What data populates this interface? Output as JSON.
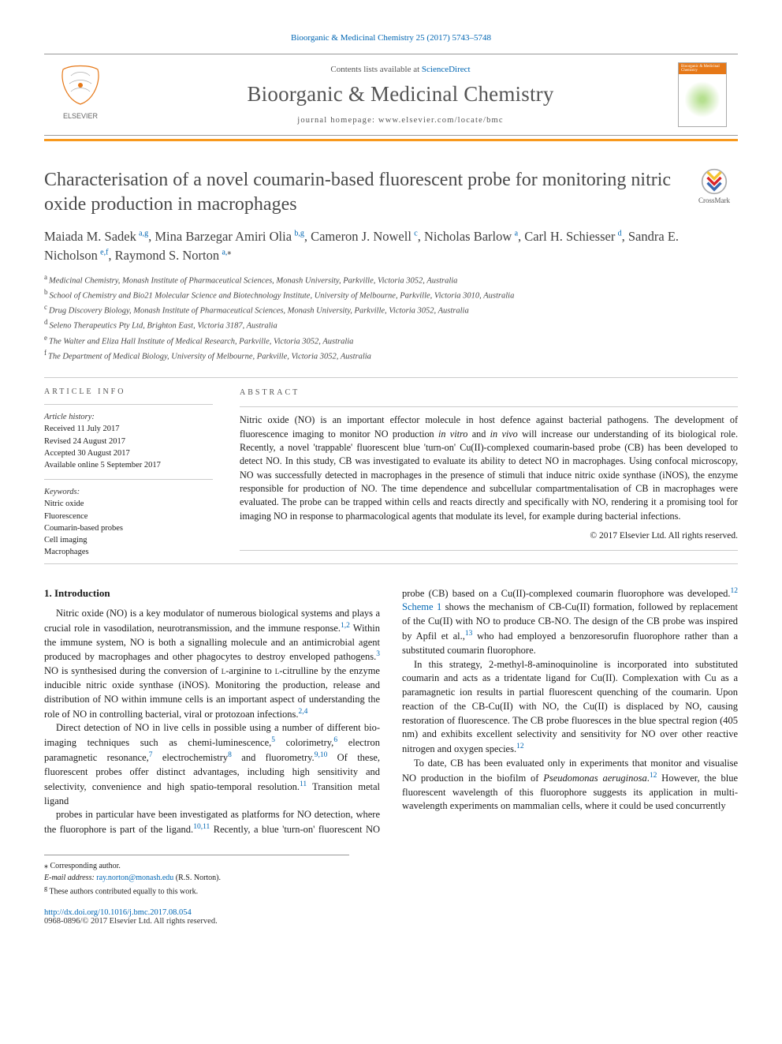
{
  "citation_line": {
    "journal": "Bioorganic & Medicinal Chemistry",
    "vol": "25 (2017) 5743–5748"
  },
  "header": {
    "contents_prefix": "Contents lists available at ",
    "contents_link": "ScienceDirect",
    "journal_name": "Bioorganic & Medicinal Chemistry",
    "homepage_prefix": "journal homepage: ",
    "homepage_url": "www.elsevier.com/locate/bmc",
    "publisher_logo_text": "ELSEVIER",
    "cover_text": "Bioorganic & Medicinal Chemistry"
  },
  "colors": {
    "accent_orange": "#f8991d",
    "link_blue": "#0066b3",
    "title_gray": "#4a4a4a",
    "body_text": "#1a1a1a",
    "muted": "#555555",
    "rule": "#999999"
  },
  "crossmark_label": "CrossMark",
  "title": "Characterisation of a novel coumarin-based fluorescent probe for monitoring nitric oxide production in macrophages",
  "authors_html": "Maiada M. Sadek|a,g|, Mina Barzegar Amiri Olia|b,g|, Cameron J. Nowell|c|, Nicholas Barlow|a|, Carl H. Schiesser|d|, Sandra E. Nicholson|e,f|, Raymond S. Norton|a,*|",
  "authors": [
    {
      "name": "Maiada M. Sadek",
      "aff": "a,g"
    },
    {
      "name": "Mina Barzegar Amiri Olia",
      "aff": "b,g"
    },
    {
      "name": "Cameron J. Nowell",
      "aff": "c"
    },
    {
      "name": "Nicholas Barlow",
      "aff": "a"
    },
    {
      "name": "Carl H. Schiesser",
      "aff": "d"
    },
    {
      "name": "Sandra E. Nicholson",
      "aff": "e,f"
    },
    {
      "name": "Raymond S. Norton",
      "aff": "a,",
      "corr": true
    }
  ],
  "affiliations": [
    {
      "key": "a",
      "text": "Medicinal Chemistry, Monash Institute of Pharmaceutical Sciences, Monash University, Parkville, Victoria 3052, Australia"
    },
    {
      "key": "b",
      "text": "School of Chemistry and Bio21 Molecular Science and Biotechnology Institute, University of Melbourne, Parkville, Victoria 3010, Australia"
    },
    {
      "key": "c",
      "text": "Drug Discovery Biology, Monash Institute of Pharmaceutical Sciences, Monash University, Parkville, Victoria 3052, Australia"
    },
    {
      "key": "d",
      "text": "Seleno Therapeutics Pty Ltd, Brighton East, Victoria 3187, Australia"
    },
    {
      "key": "e",
      "text": "The Walter and Eliza Hall Institute of Medical Research, Parkville, Victoria 3052, Australia"
    },
    {
      "key": "f",
      "text": "The Department of Medical Biology, University of Melbourne, Parkville, Victoria 3052, Australia"
    }
  ],
  "article_info": {
    "heading": "ARTICLE INFO",
    "history_label": "Article history:",
    "received": "Received 11 July 2017",
    "revised": "Revised 24 August 2017",
    "accepted": "Accepted 30 August 2017",
    "online": "Available online 5 September 2017",
    "keywords_label": "Keywords:",
    "keywords": [
      "Nitric oxide",
      "Fluorescence",
      "Coumarin-based probes",
      "Cell imaging",
      "Macrophages"
    ]
  },
  "abstract": {
    "heading": "ABSTRACT",
    "text": "Nitric oxide (NO) is an important effector molecule in host defence against bacterial pathogens. The development of fluorescence imaging to monitor NO production in vitro and in vivo will increase our understanding of its biological role. Recently, a novel 'trappable' fluorescent blue 'turn-on' Cu(II)-complexed coumarin-based probe (CB) has been developed to detect NO. In this study, CB was investigated to evaluate its ability to detect NO in macrophages. Using confocal microscopy, NO was successfully detected in macrophages in the presence of stimuli that induce nitric oxide synthase (iNOS), the enzyme responsible for production of NO. The time dependence and subcellular compartmentalisation of CB in macrophages were evaluated. The probe can be trapped within cells and reacts directly and specifically with NO, rendering it a promising tool for imaging NO in response to pharmacological agents that modulate its level, for example during bacterial infections.",
    "copyright": "© 2017 Elsevier Ltd. All rights reserved."
  },
  "sections": {
    "intro_head": "1. Introduction",
    "p1": "Nitric oxide (NO) is a key modulator of numerous biological systems and plays a crucial role in vasodilation, neurotransmission, and the immune response.1,2 Within the immune system, NO is both a signalling molecule and an antimicrobial agent produced by macrophages and other phagocytes to destroy enveloped pathogens.3 NO is synthesised during the conversion of L-arginine to L-citrulline by the enzyme inducible nitric oxide synthase (iNOS). Monitoring the production, release and distribution of NO within immune cells is an important aspect of understanding the role of NO in controlling bacterial, viral or protozoan infections.2,4",
    "p2": "Direct detection of NO in live cells in possible using a number of different bio-imaging techniques such as chemi-luminescence,5 colorimetry,6 electron paramagnetic resonance,7 electrochemistry8 and fluorometry.9,10 Of these, fluorescent probes offer distinct advantages, including high sensitivity and selectivity, convenience and high spatio-temporal resolution.11 Transition metal ligand",
    "p3": "probes in particular have been investigated as platforms for NO detection, where the fluorophore is part of the ligand.10,11 Recently, a blue 'turn-on' fluorescent NO probe (CB) based on a Cu(II)-complexed coumarin fluorophore was developed.12 Scheme 1 shows the mechanism of CB-Cu(II) formation, followed by replacement of the Cu(II) with NO to produce CB-NO. The design of the CB probe was inspired by Apfil et al.,13 who had employed a benzoresorufin fluorophore rather than a substituted coumarin fluorophore.",
    "p4": "In this strategy, 2-methyl-8-aminoquinoline is incorporated into substituted coumarin and acts as a tridentate ligand for Cu(II). Complexation with Cu as a paramagnetic ion results in partial fluorescent quenching of the coumarin. Upon reaction of the CB-Cu(II) with NO, the Cu(II) is displaced by NO, causing restoration of fluorescence. The CB probe fluoresces in the blue spectral region (405 nm) and exhibits excellent selectivity and sensitivity for NO over other reactive nitrogen and oxygen species.12",
    "p5": "To date, CB has been evaluated only in experiments that monitor and visualise NO production in the biofilm of Pseudomonas aeruginosa.12 However, the blue fluorescent wavelength of this fluorophore suggests its application in multi-wavelength experiments on mammalian cells, where it could be used concurrently"
  },
  "footnotes": {
    "corr": "⁎ Corresponding author.",
    "email_label": "E-mail address: ",
    "email": "ray.norton@monash.edu",
    "email_who": " (R.S. Norton).",
    "equal": "g These authors contributed equally to this work."
  },
  "doi": {
    "url": "http://dx.doi.org/10.1016/j.bmc.2017.08.054",
    "issn_line": "0968-0896/© 2017 Elsevier Ltd. All rights reserved."
  }
}
